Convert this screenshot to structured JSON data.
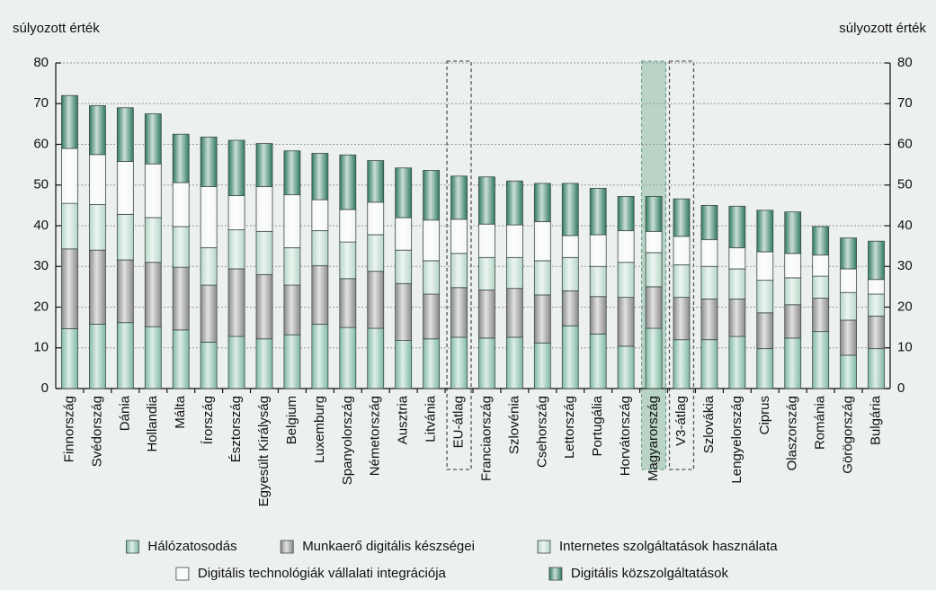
{
  "chart_data": {
    "type": "stacked_bar",
    "y_label": "súlyozott érték",
    "y2_label": "súlyozott érték",
    "categories": [
      "Finnország",
      "Svédország",
      "Dánia",
      "Hollandia",
      "Málta",
      "Írország",
      "Észtország",
      "Egyesült Királyság",
      "Belgium",
      "Luxemburg",
      "Spanyolország",
      "Németország",
      "Ausztria",
      "Litvánia",
      "EU-átlag",
      "Franciaország",
      "Szlovénia",
      "Csehország",
      "Lettország",
      "Portugália",
      "Horvátország",
      "Magyarország",
      "V3-átlag",
      "Szlovákia",
      "Lengyelország",
      "Ciprus",
      "Olaszország",
      "Románia",
      "Görögország",
      "Bulgária"
    ],
    "series": [
      {
        "name": "Hálózatosodás",
        "color": "#7fb9a3",
        "values": [
          14.7,
          15.8,
          16.2,
          15.2,
          14.4,
          11.4,
          12.8,
          12.2,
          13.2,
          15.8,
          15,
          14.8,
          11.8,
          12.2,
          12.6,
          12.4,
          12.6,
          11.2,
          15.4,
          13.4,
          10.4,
          14.8,
          12,
          12,
          12.8,
          9.8,
          12.4,
          14,
          8.2,
          9.8
        ]
      },
      {
        "name": "Munkaerő digitális készségei",
        "color": "#8a8a8a",
        "values": [
          19.6,
          18.2,
          15.4,
          15.8,
          15.4,
          14,
          16.6,
          15.8,
          12.2,
          14.4,
          12,
          14,
          14,
          11,
          12.2,
          11.8,
          12,
          11.8,
          8.6,
          9.2,
          12,
          10.2,
          10.4,
          10,
          9.2,
          8.8,
          8.2,
          8.2,
          8.6,
          8
        ]
      },
      {
        "name": "Internetes szolgáltatások használata",
        "color": "#b5d6c8",
        "values": [
          11.2,
          11.2,
          11.2,
          11,
          10,
          9.2,
          9.6,
          10.6,
          9.2,
          8.6,
          9,
          9,
          8.2,
          8.2,
          8.4,
          8,
          7.6,
          8.4,
          8.2,
          7.4,
          8.6,
          8.4,
          8,
          8,
          7.4,
          8,
          6.6,
          5.4,
          6.8,
          5.4
        ]
      },
      {
        "name": "Digitális technológiák vállalati integrációja",
        "color": "#f4f6f5",
        "values": [
          13.5,
          12.3,
          13,
          13.2,
          10.8,
          15,
          8.4,
          11,
          13,
          7.6,
          8,
          8,
          8,
          10,
          8.4,
          8.2,
          8,
          9.6,
          5.4,
          7.8,
          7.8,
          5.2,
          7,
          6.6,
          5.2,
          7,
          6,
          5.2,
          5.8,
          3.6
        ]
      },
      {
        "name": "Digitális közszolgáltatások",
        "color": "#2f7a60",
        "values": [
          13,
          12,
          13.2,
          12.3,
          11.9,
          12.2,
          13.6,
          10.6,
          10.8,
          11.4,
          13.4,
          10.2,
          12.2,
          12.2,
          10.6,
          11.6,
          10.8,
          9.4,
          12.8,
          11.4,
          8.4,
          8.6,
          9.2,
          8.4,
          10.2,
          10.2,
          10.2,
          7,
          7.6,
          9.4
        ]
      }
    ],
    "ylim": [
      0,
      80
    ],
    "yticks": [
      0,
      10,
      20,
      30,
      40,
      50,
      60,
      70,
      80
    ],
    "y2lim": [
      0,
      80
    ],
    "y2ticks": [
      0,
      10,
      20,
      30,
      40,
      50,
      60,
      70,
      80
    ],
    "grid": true,
    "outlined": [
      14,
      22
    ],
    "highlighted": [
      21
    ],
    "legend": "bottom"
  }
}
